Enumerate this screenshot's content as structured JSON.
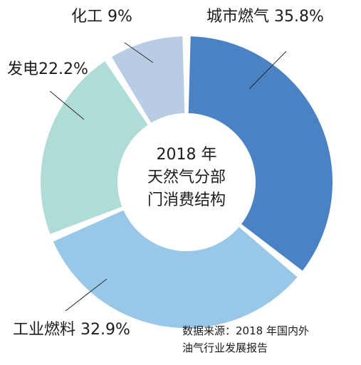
{
  "chart_data": {
    "type": "pie",
    "title_lines": [
      "2018 年",
      "天然气分部",
      "门消费结构"
    ],
    "slices": [
      {
        "label": "城市燃气 35.8%",
        "value": 35.8,
        "color": "#4a82c4"
      },
      {
        "label": "工业燃料 32.9%",
        "value": 32.9,
        "color": "#98c7e8"
      },
      {
        "label": "发电22.2%",
        "value": 22.2,
        "color": "#b0dcd8"
      },
      {
        "label": "化工 9%",
        "value": 9.0,
        "color": "#b8cde3"
      }
    ],
    "source_lines": [
      "数据来源：2018 年国内外",
      "油气行业发展报告"
    ]
  }
}
